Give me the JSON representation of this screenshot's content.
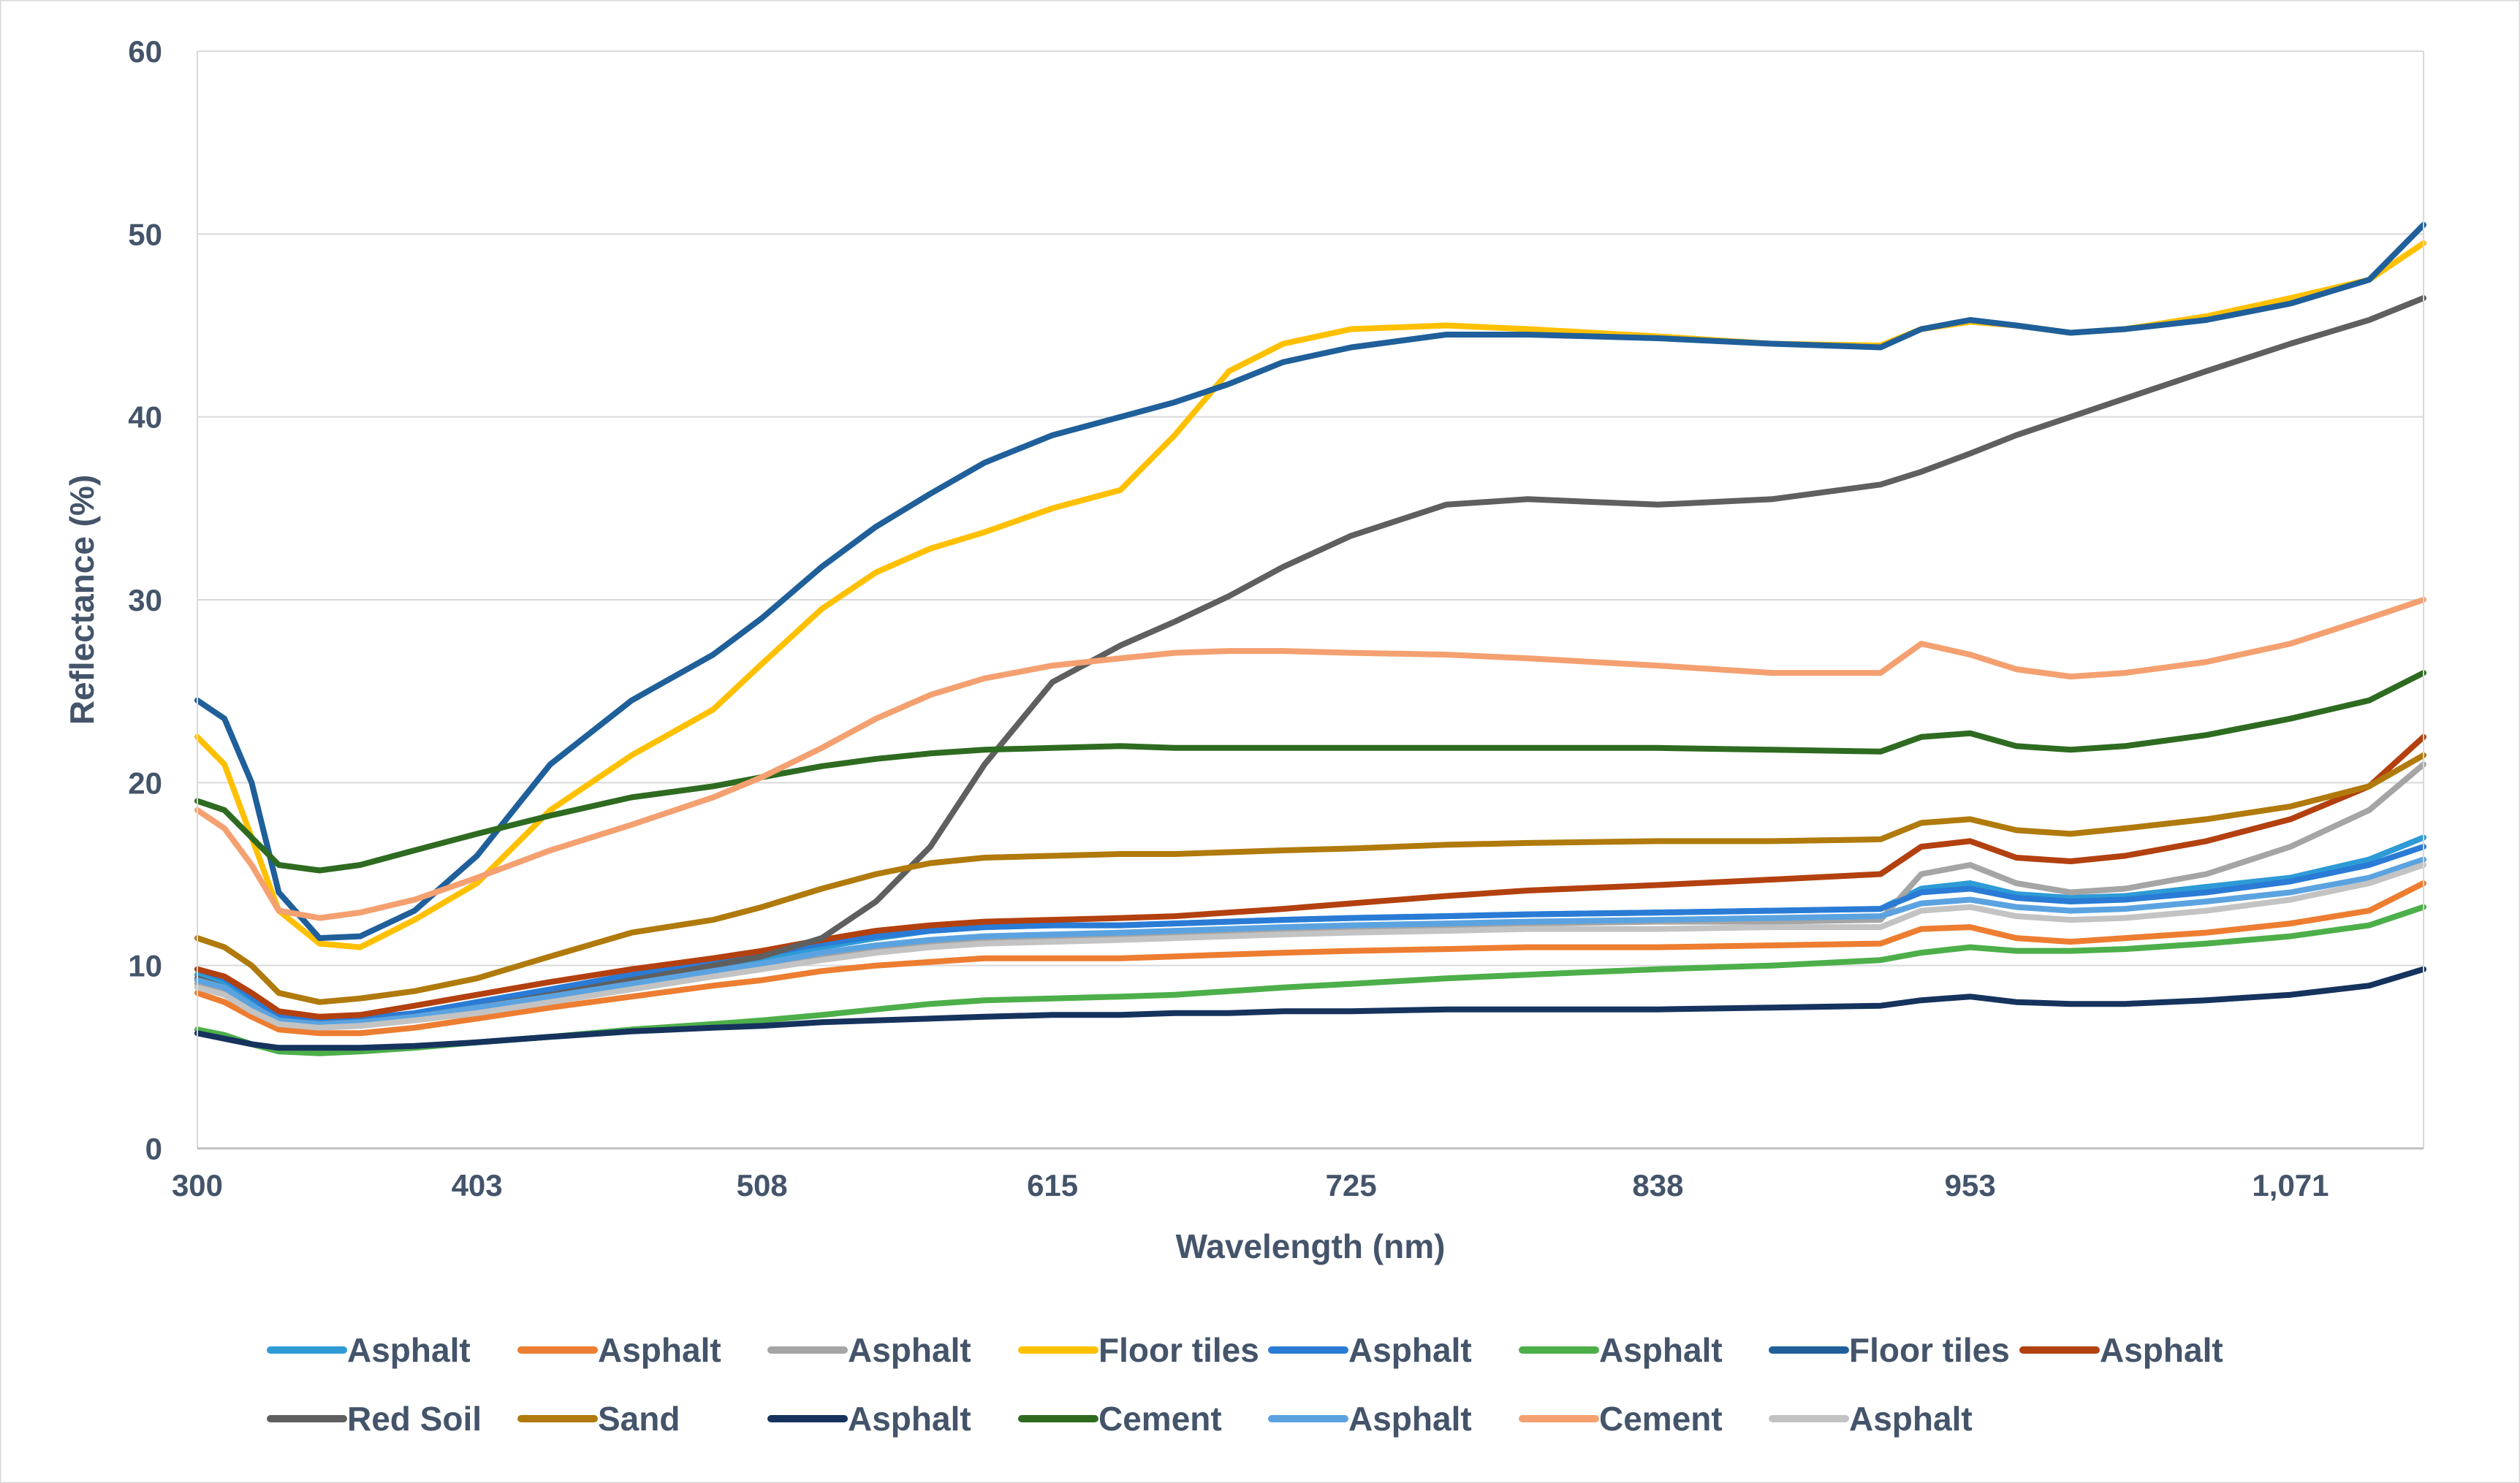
{
  "chart_data": {
    "type": "line",
    "title": "",
    "xlabel": "Wavelength (nm)",
    "ylabel": "Reflectance (%)",
    "xlim": [
      300,
      1120
    ],
    "ylim": [
      0,
      60
    ],
    "x_ticks": [
      300,
      403,
      508,
      615,
      725,
      838,
      953,
      1071
    ],
    "x_tick_labels": [
      "300",
      "403",
      "508",
      "615",
      "725",
      "838",
      "953",
      "1,071"
    ],
    "y_ticks": [
      0,
      10,
      20,
      30,
      40,
      50,
      60
    ],
    "y_tick_labels": [
      "0",
      "10",
      "20",
      "30",
      "40",
      "50",
      "60"
    ],
    "grid": true,
    "legend_position": "bottom",
    "x": [
      300,
      310,
      320,
      330,
      345,
      360,
      380,
      403,
      430,
      460,
      490,
      508,
      530,
      550,
      570,
      590,
      615,
      640,
      660,
      680,
      700,
      725,
      760,
      790,
      838,
      880,
      920,
      935,
      953,
      970,
      990,
      1010,
      1040,
      1071,
      1100,
      1120
    ],
    "series": [
      {
        "name": "Asphalt",
        "color": "#2e9bd6",
        "values": [
          9.5,
          9.0,
          8.0,
          7.0,
          6.8,
          6.9,
          7.2,
          7.8,
          8.5,
          9.3,
          10.0,
          10.4,
          11.0,
          11.5,
          11.9,
          12.1,
          12.2,
          12.2,
          12.3,
          12.4,
          12.5,
          12.6,
          12.7,
          12.8,
          12.9,
          13.0,
          13.1,
          14.2,
          14.5,
          13.9,
          13.7,
          13.8,
          14.3,
          14.8,
          15.8,
          17.0
        ]
      },
      {
        "name": "Asphalt",
        "color": "#ed7d31",
        "values": [
          8.5,
          8.0,
          7.2,
          6.5,
          6.3,
          6.3,
          6.6,
          7.1,
          7.7,
          8.3,
          8.9,
          9.2,
          9.7,
          10.0,
          10.2,
          10.4,
          10.4,
          10.4,
          10.5,
          10.6,
          10.7,
          10.8,
          10.9,
          11.0,
          11.0,
          11.1,
          11.2,
          12.0,
          12.1,
          11.5,
          11.3,
          11.5,
          11.8,
          12.3,
          13.0,
          14.5
        ]
      },
      {
        "name": "Asphalt",
        "color": "#a5a5a5",
        "values": [
          9.0,
          8.6,
          7.7,
          6.9,
          6.7,
          6.8,
          7.1,
          7.6,
          8.3,
          9.0,
          9.7,
          10.1,
          10.6,
          11.0,
          11.3,
          11.5,
          11.6,
          11.7,
          11.8,
          11.9,
          12.0,
          12.1,
          12.2,
          12.3,
          12.4,
          12.4,
          12.5,
          15.0,
          15.5,
          14.5,
          14.0,
          14.2,
          15.0,
          16.5,
          18.5,
          21.0
        ]
      },
      {
        "name": "Floor tiles",
        "color": "#ffc000",
        "values": [
          22.5,
          21.0,
          17.0,
          13.0,
          11.2,
          11.0,
          12.5,
          14.5,
          18.5,
          21.5,
          24.0,
          26.5,
          29.5,
          31.5,
          32.8,
          33.7,
          35.0,
          36.0,
          39.0,
          42.5,
          44.0,
          44.8,
          45.0,
          44.8,
          44.4,
          44.0,
          43.9,
          44.8,
          45.2,
          45.0,
          44.6,
          44.8,
          45.5,
          46.5,
          47.5,
          49.5
        ]
      },
      {
        "name": "Asphalt",
        "color": "#2a7bd5",
        "values": [
          9.8,
          9.3,
          8.3,
          7.2,
          7.0,
          7.1,
          7.4,
          8.0,
          8.7,
          9.5,
          10.2,
          10.6,
          11.2,
          11.6,
          11.9,
          12.1,
          12.2,
          12.2,
          12.3,
          12.4,
          12.5,
          12.6,
          12.7,
          12.8,
          12.9,
          13.0,
          13.1,
          14.0,
          14.2,
          13.7,
          13.5,
          13.6,
          14.0,
          14.6,
          15.5,
          16.5
        ]
      },
      {
        "name": "Asphalt",
        "color": "#4daf4a",
        "values": [
          6.5,
          6.2,
          5.7,
          5.3,
          5.2,
          5.3,
          5.5,
          5.8,
          6.1,
          6.5,
          6.8,
          7.0,
          7.3,
          7.6,
          7.9,
          8.1,
          8.2,
          8.3,
          8.4,
          8.6,
          8.8,
          9.0,
          9.3,
          9.5,
          9.8,
          10.0,
          10.3,
          10.7,
          11.0,
          10.8,
          10.8,
          10.9,
          11.2,
          11.6,
          12.2,
          13.2
        ]
      },
      {
        "name": "Floor tiles",
        "color": "#1f5f9a",
        "values": [
          24.5,
          23.5,
          20.0,
          14.0,
          11.5,
          11.6,
          13.0,
          16.0,
          21.0,
          24.5,
          27.0,
          29.0,
          31.8,
          34.0,
          35.8,
          37.5,
          39.0,
          40.0,
          40.8,
          41.8,
          43.0,
          43.8,
          44.5,
          44.5,
          44.3,
          44.0,
          43.8,
          44.8,
          45.3,
          45.0,
          44.6,
          44.8,
          45.3,
          46.2,
          47.5,
          50.5
        ]
      },
      {
        "name": "Asphalt",
        "color": "#b3400f",
        "values": [
          9.8,
          9.4,
          8.5,
          7.5,
          7.2,
          7.3,
          7.8,
          8.4,
          9.1,
          9.8,
          10.4,
          10.8,
          11.4,
          11.9,
          12.2,
          12.4,
          12.5,
          12.6,
          12.7,
          12.9,
          13.1,
          13.4,
          13.8,
          14.1,
          14.4,
          14.7,
          15.0,
          16.5,
          16.8,
          15.9,
          15.7,
          16.0,
          16.8,
          18.0,
          19.8,
          22.5
        ]
      },
      {
        "name": "Red Soil",
        "color": "#5f5f5f",
        "values": [
          9.3,
          8.8,
          7.8,
          7.0,
          6.8,
          6.9,
          7.2,
          7.7,
          8.4,
          9.2,
          10.0,
          10.5,
          11.5,
          13.5,
          16.5,
          21.0,
          25.5,
          27.5,
          28.8,
          30.2,
          31.8,
          33.5,
          35.2,
          35.5,
          35.2,
          35.5,
          36.3,
          37.0,
          38.0,
          39.0,
          40.0,
          41.0,
          42.5,
          44.0,
          45.3,
          46.5
        ]
      },
      {
        "name": "Sand",
        "color": "#b07a0c",
        "values": [
          11.5,
          11.0,
          10.0,
          8.5,
          8.0,
          8.2,
          8.6,
          9.3,
          10.5,
          11.8,
          12.5,
          13.2,
          14.2,
          15.0,
          15.6,
          15.9,
          16.0,
          16.1,
          16.1,
          16.2,
          16.3,
          16.4,
          16.6,
          16.7,
          16.8,
          16.8,
          16.9,
          17.8,
          18.0,
          17.4,
          17.2,
          17.5,
          18.0,
          18.7,
          19.8,
          21.5
        ]
      },
      {
        "name": "Asphalt",
        "color": "#16335e",
        "values": [
          6.3,
          6.0,
          5.7,
          5.5,
          5.5,
          5.5,
          5.6,
          5.8,
          6.1,
          6.4,
          6.6,
          6.7,
          6.9,
          7.0,
          7.1,
          7.2,
          7.3,
          7.3,
          7.4,
          7.4,
          7.5,
          7.5,
          7.6,
          7.6,
          7.6,
          7.7,
          7.8,
          8.1,
          8.3,
          8.0,
          7.9,
          7.9,
          8.1,
          8.4,
          8.9,
          9.8
        ]
      },
      {
        "name": "Cement",
        "color": "#2e6b21",
        "values": [
          19.0,
          18.5,
          17.0,
          15.5,
          15.2,
          15.5,
          16.3,
          17.2,
          18.2,
          19.2,
          19.8,
          20.3,
          20.9,
          21.3,
          21.6,
          21.8,
          21.9,
          22.0,
          21.9,
          21.9,
          21.9,
          21.9,
          21.9,
          21.9,
          21.9,
          21.8,
          21.7,
          22.5,
          22.7,
          22.0,
          21.8,
          22.0,
          22.6,
          23.5,
          24.5,
          26.0
        ]
      },
      {
        "name": "Asphalt",
        "color": "#5ba3e0",
        "values": [
          9.2,
          8.8,
          7.8,
          7.0,
          6.8,
          6.9,
          7.2,
          7.7,
          8.3,
          9.0,
          9.7,
          10.1,
          10.7,
          11.1,
          11.4,
          11.6,
          11.7,
          11.8,
          11.9,
          12.0,
          12.1,
          12.2,
          12.3,
          12.4,
          12.5,
          12.6,
          12.7,
          13.4,
          13.6,
          13.2,
          13.0,
          13.1,
          13.5,
          14.0,
          14.8,
          15.8
        ]
      },
      {
        "name": "Cement",
        "color": "#f4a070",
        "values": [
          18.5,
          17.5,
          15.5,
          13.0,
          12.6,
          12.9,
          13.6,
          14.8,
          16.3,
          17.7,
          19.2,
          20.3,
          21.9,
          23.5,
          24.8,
          25.7,
          26.4,
          26.8,
          27.1,
          27.2,
          27.2,
          27.1,
          27.0,
          26.8,
          26.4,
          26.0,
          26.0,
          27.6,
          27.0,
          26.2,
          25.8,
          26.0,
          26.6,
          27.6,
          29.0,
          30.0
        ]
      },
      {
        "name": "Asphalt",
        "color": "#c3c3c3",
        "values": [
          8.8,
          8.4,
          7.5,
          6.8,
          6.6,
          6.7,
          7.0,
          7.4,
          8.0,
          8.7,
          9.4,
          9.8,
          10.3,
          10.7,
          11.0,
          11.2,
          11.3,
          11.4,
          11.5,
          11.6,
          11.7,
          11.8,
          11.9,
          12.0,
          12.0,
          12.1,
          12.1,
          13.0,
          13.2,
          12.7,
          12.5,
          12.6,
          13.0,
          13.6,
          14.5,
          15.5
        ]
      }
    ]
  }
}
